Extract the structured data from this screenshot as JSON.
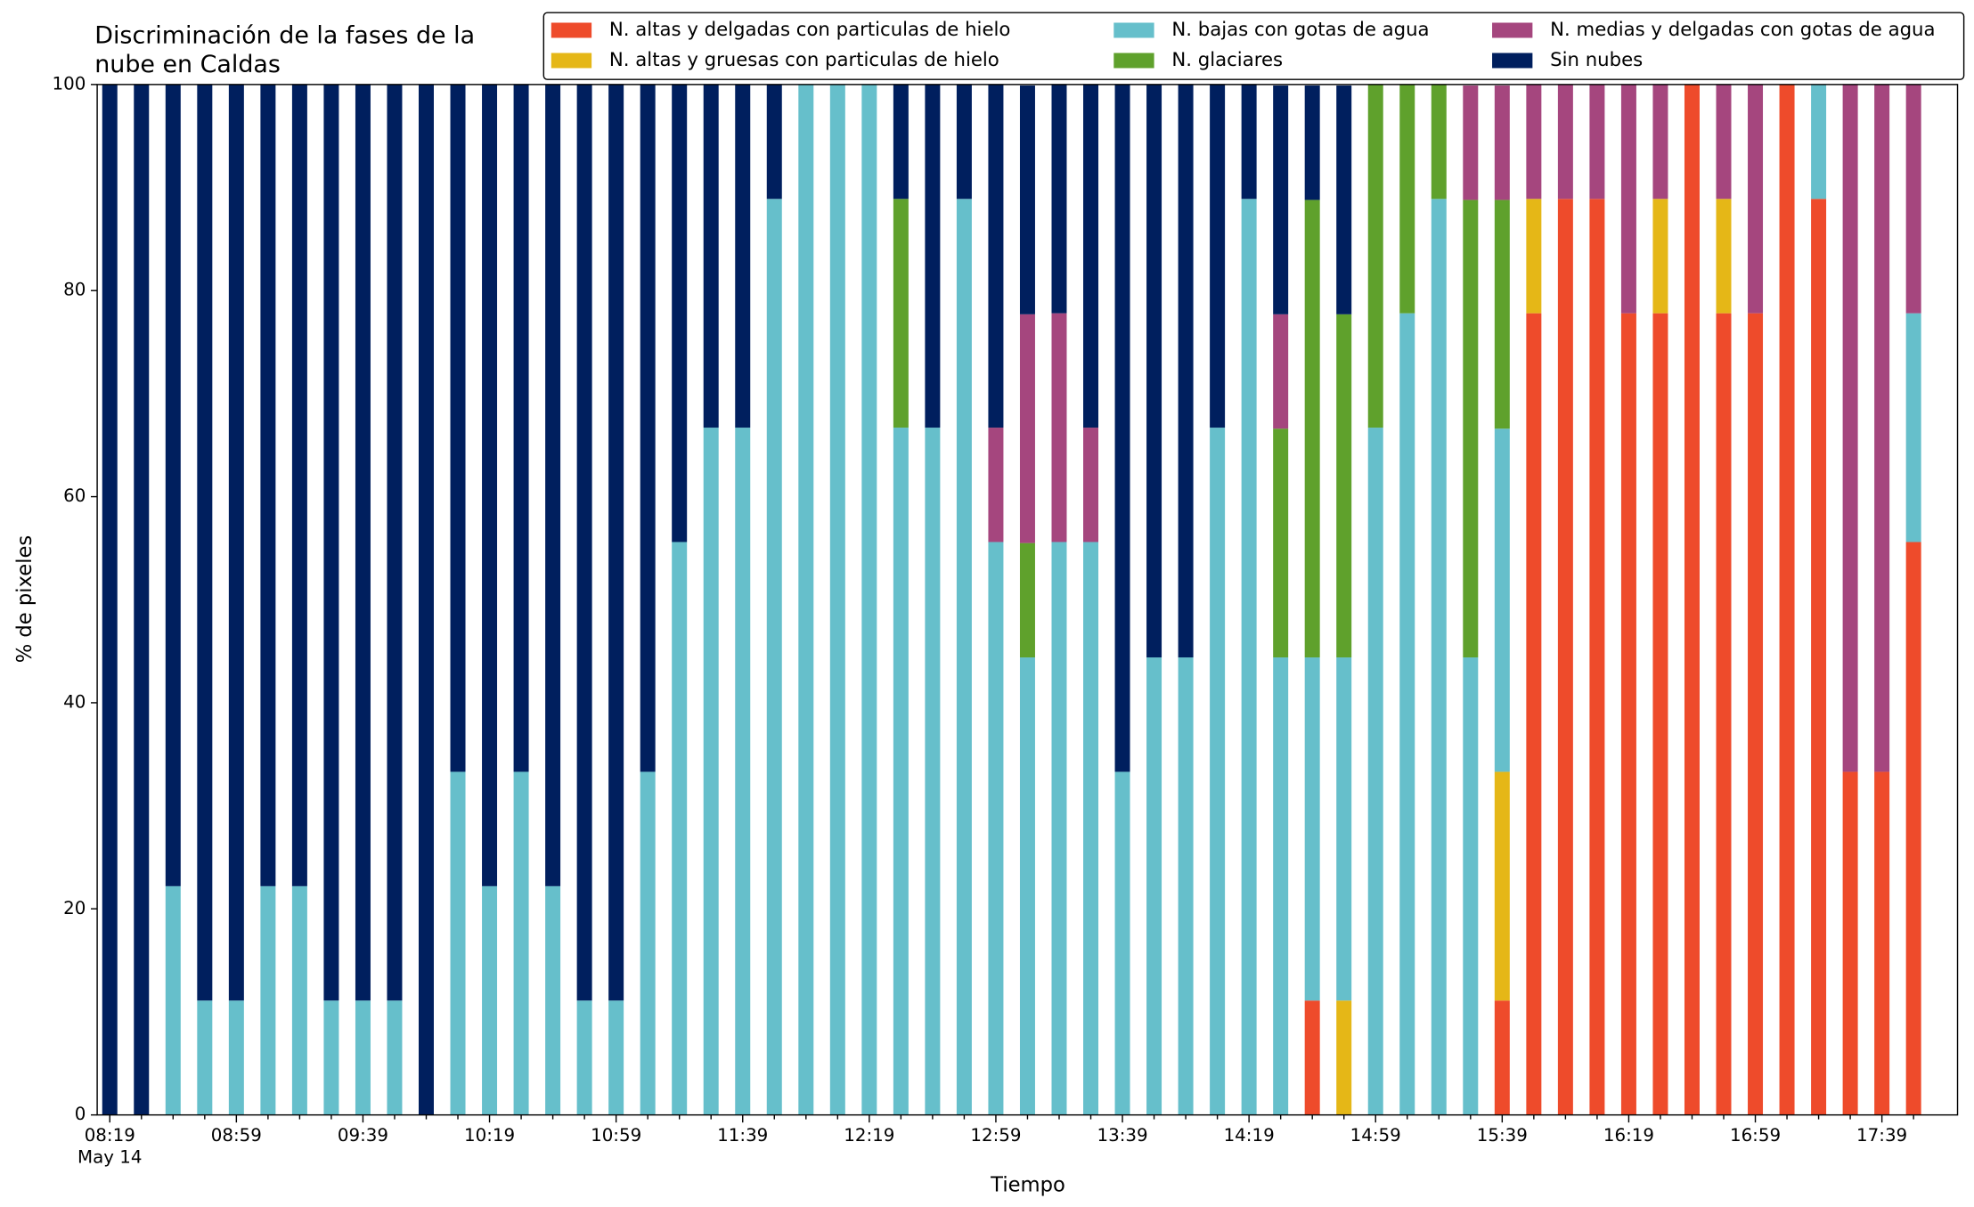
{
  "chart_data": {
    "type": "stacked_bar",
    "title": [
      "Discriminación de la fases de la",
      "nube en Caldas"
    ],
    "x_label": "Tiempo",
    "y_label": "% de pixeles",
    "x_date_label": "May 14",
    "categories": [
      "08:19",
      null,
      null,
      null,
      "08:59",
      null,
      null,
      null,
      "09:39",
      null,
      null,
      null,
      "10:19",
      null,
      null,
      null,
      "10:59",
      null,
      null,
      null,
      "11:39",
      null,
      null,
      null,
      "12:19",
      null,
      null,
      null,
      "12:59",
      null,
      null,
      null,
      "13:39",
      null,
      null,
      null,
      "14:19",
      null,
      null,
      null,
      "14:59",
      null,
      null,
      null,
      "15:39",
      null,
      null,
      null,
      "16:19",
      null,
      null,
      null,
      "16:59",
      null,
      null,
      null,
      "17:39",
      null
    ],
    "ylim": [
      0,
      100
    ],
    "yticks": [
      0,
      20,
      40,
      60,
      80,
      100
    ],
    "legend_position": "top",
    "series": [
      {
        "name": "N. altas y delgadas con particulas de hielo",
        "color": "#ee4b2b",
        "values": [
          0,
          0,
          0,
          0,
          0,
          0,
          0,
          0,
          0,
          0,
          0,
          0,
          0,
          0,
          0,
          0,
          0,
          0,
          0,
          0,
          0,
          0,
          0,
          0,
          0,
          0,
          0,
          0,
          0,
          0,
          0,
          0,
          0,
          0,
          0,
          0,
          0,
          0,
          11.1,
          0,
          0,
          0,
          0,
          0,
          11.1,
          77.8,
          88.9,
          88.9,
          77.8,
          77.8,
          100,
          77.8,
          77.8,
          100,
          88.9,
          33.3,
          33.3,
          55.6
        ]
      },
      {
        "name": "N. altas y gruesas con particulas de hielo",
        "color": "#e5b717",
        "values": [
          0,
          0,
          0,
          0,
          0,
          0,
          0,
          0,
          0,
          0,
          0,
          0,
          0,
          0,
          0,
          0,
          0,
          0,
          0,
          0,
          0,
          0,
          0,
          0,
          0,
          0,
          0,
          0,
          0,
          0,
          0,
          0,
          0,
          0,
          0,
          0,
          0,
          0,
          0,
          11.1,
          0,
          0,
          0,
          0,
          22.2,
          11.1,
          0,
          0,
          0,
          11.1,
          0,
          11.1,
          0,
          0,
          0,
          0,
          0,
          0
        ]
      },
      {
        "name": "N. bajas con gotas de agua",
        "color": "#66bfcb",
        "values": [
          0,
          0,
          22.2,
          11.1,
          11.1,
          22.2,
          22.2,
          11.1,
          11.1,
          11.1,
          0,
          33.3,
          22.2,
          33.3,
          22.2,
          11.1,
          11.1,
          33.3,
          55.6,
          66.7,
          66.7,
          88.9,
          100,
          100,
          100,
          66.7,
          66.7,
          88.9,
          55.6,
          44.4,
          55.6,
          55.6,
          33.3,
          44.4,
          44.4,
          66.7,
          88.9,
          44.4,
          33.3,
          33.3,
          66.7,
          77.8,
          88.9,
          44.4,
          33.3,
          0,
          0,
          0,
          0,
          0,
          0,
          0,
          0,
          0,
          11.1,
          0,
          0,
          22.2
        ]
      },
      {
        "name": "N. glaciares",
        "color": "#5fa12c",
        "values": [
          0,
          0,
          0,
          0,
          0,
          0,
          0,
          0,
          0,
          0,
          0,
          0,
          0,
          0,
          0,
          0,
          0,
          0,
          0,
          0,
          0,
          0,
          0,
          0,
          0,
          22.2,
          0,
          0,
          0,
          11.1,
          0,
          0,
          0,
          0,
          0,
          0,
          0,
          22.2,
          44.4,
          33.3,
          33.3,
          22.2,
          11.1,
          44.4,
          22.2,
          0,
          0,
          0,
          0,
          0,
          0,
          0,
          0,
          0,
          0,
          0,
          0,
          0
        ]
      },
      {
        "name": "N. medias y delgadas con gotas de agua",
        "color": "#a5467e",
        "values": [
          0,
          0,
          0,
          0,
          0,
          0,
          0,
          0,
          0,
          0,
          0,
          0,
          0,
          0,
          0,
          0,
          0,
          0,
          0,
          0,
          0,
          0,
          0,
          0,
          0,
          0,
          0,
          0,
          11.1,
          22.2,
          22.2,
          11.1,
          0,
          0,
          0,
          0,
          0,
          11.1,
          0,
          0,
          0,
          0,
          0,
          11.1,
          11.1,
          11.1,
          11.1,
          11.1,
          22.2,
          11.1,
          0,
          11.1,
          22.2,
          0,
          0,
          66.7,
          66.7,
          22.2
        ]
      },
      {
        "name": "Sin nubes",
        "color": "#001f5e",
        "values": [
          100,
          100,
          77.8,
          88.9,
          88.9,
          77.8,
          77.8,
          88.9,
          88.9,
          88.9,
          100,
          66.7,
          77.8,
          66.7,
          77.8,
          88.9,
          88.9,
          66.7,
          44.4,
          33.3,
          33.3,
          11.1,
          0,
          0,
          0,
          11.1,
          33.3,
          11.1,
          33.3,
          22.2,
          22.2,
          33.3,
          66.7,
          55.6,
          55.6,
          33.3,
          11.1,
          22.2,
          11.1,
          22.2,
          0,
          0,
          0,
          0,
          0,
          0,
          0,
          0,
          0,
          0,
          0,
          0,
          0,
          0,
          0,
          0,
          0,
          0
        ]
      }
    ]
  }
}
